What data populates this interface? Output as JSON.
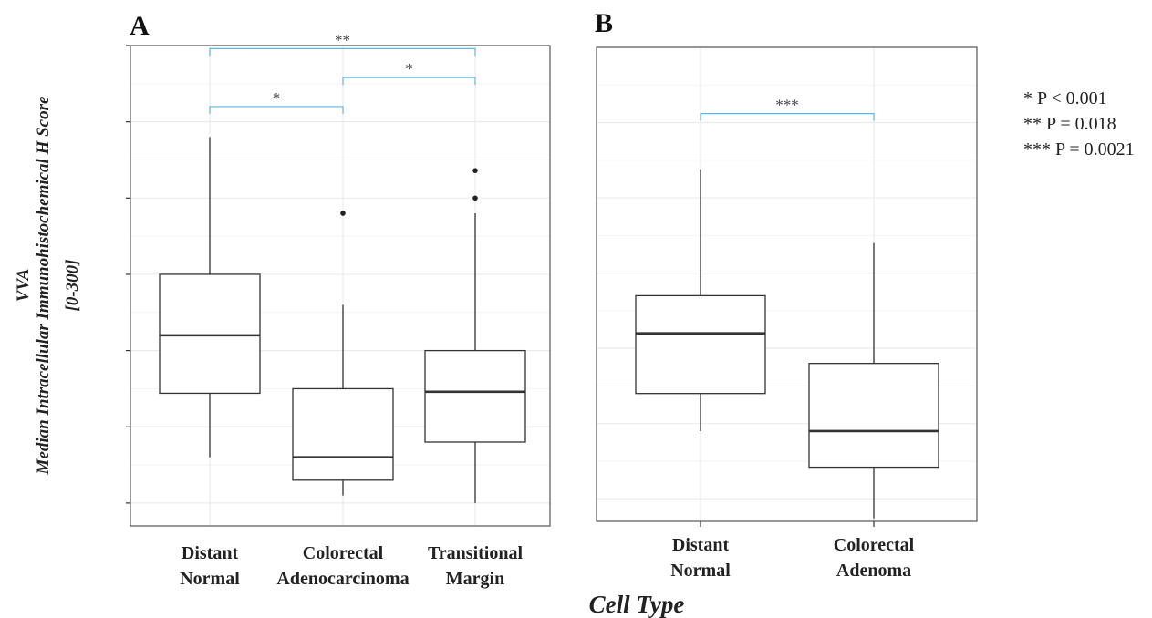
{
  "chart_data": [
    {
      "panel": "A",
      "type": "box",
      "ylim": [
        -15,
        300
      ],
      "grid": true,
      "categories": [
        "Distant Normal",
        "Colorectal Adenocarcinoma",
        "Transitional Margin"
      ],
      "boxes": [
        {
          "category": "Distant Normal",
          "whisker_low": 30,
          "q1": 72,
          "median": 110,
          "q3": 150,
          "whisker_high": 240,
          "outliers": []
        },
        {
          "category": "Colorectal Adenocarcinoma",
          "whisker_low": 5,
          "q1": 15,
          "median": 30,
          "q3": 75,
          "whisker_high": 130,
          "outliers": [
            190
          ]
        },
        {
          "category": "Transitional Margin",
          "whisker_low": 0,
          "q1": 40,
          "median": 73,
          "q3": 100,
          "whisker_high": 190,
          "outliers": [
            200,
            218
          ]
        }
      ],
      "brackets": [
        {
          "from": 0,
          "to": 1,
          "label": "*",
          "y": 260
        },
        {
          "from": 1,
          "to": 2,
          "label": "*",
          "y": 279
        },
        {
          "from": 0,
          "to": 2,
          "label": "**",
          "y": 298
        }
      ]
    },
    {
      "panel": "B",
      "type": "box",
      "ylim": [
        -15,
        300
      ],
      "grid": true,
      "categories": [
        "Distant Normal",
        "Colorectal Adenoma"
      ],
      "boxes": [
        {
          "category": "Distant Normal",
          "whisker_low": 45,
          "q1": 70,
          "median": 110,
          "q3": 135,
          "whisker_high": 219,
          "outliers": []
        },
        {
          "category": "Colorectal Adenoma",
          "whisker_low": -13,
          "q1": 21,
          "median": 45,
          "q3": 90,
          "whisker_high": 170,
          "outliers": []
        }
      ],
      "brackets": [
        {
          "from": 0,
          "to": 1,
          "label": "***",
          "y": 256
        }
      ]
    }
  ],
  "figure": {
    "panel_a_letter": "A",
    "panel_b_letter": "B",
    "ylabel_line1": "VVA",
    "ylabel_line2": "Median Intracellular Immunohistochemical H Score",
    "ylabel_line3": "[0-300]",
    "xlabel": "Cell Type",
    "legend": [
      "* P < 0.001",
      "** P = 0.018",
      "*** P = 0.0021"
    ],
    "colors": {
      "bracket": "#5bb8e6",
      "box": "#333333",
      "grid": "#ebebeb",
      "frame": "#555555"
    }
  },
  "axis_text": {
    "panel_a_categories": [
      [
        "Distant",
        "Normal"
      ],
      [
        "Colorectal",
        "Adenocarcinoma"
      ],
      [
        "Transitional",
        "Margin"
      ]
    ],
    "panel_b_categories": [
      [
        "Distant",
        "Normal"
      ],
      [
        "Colorectal",
        "Adenoma"
      ]
    ]
  }
}
